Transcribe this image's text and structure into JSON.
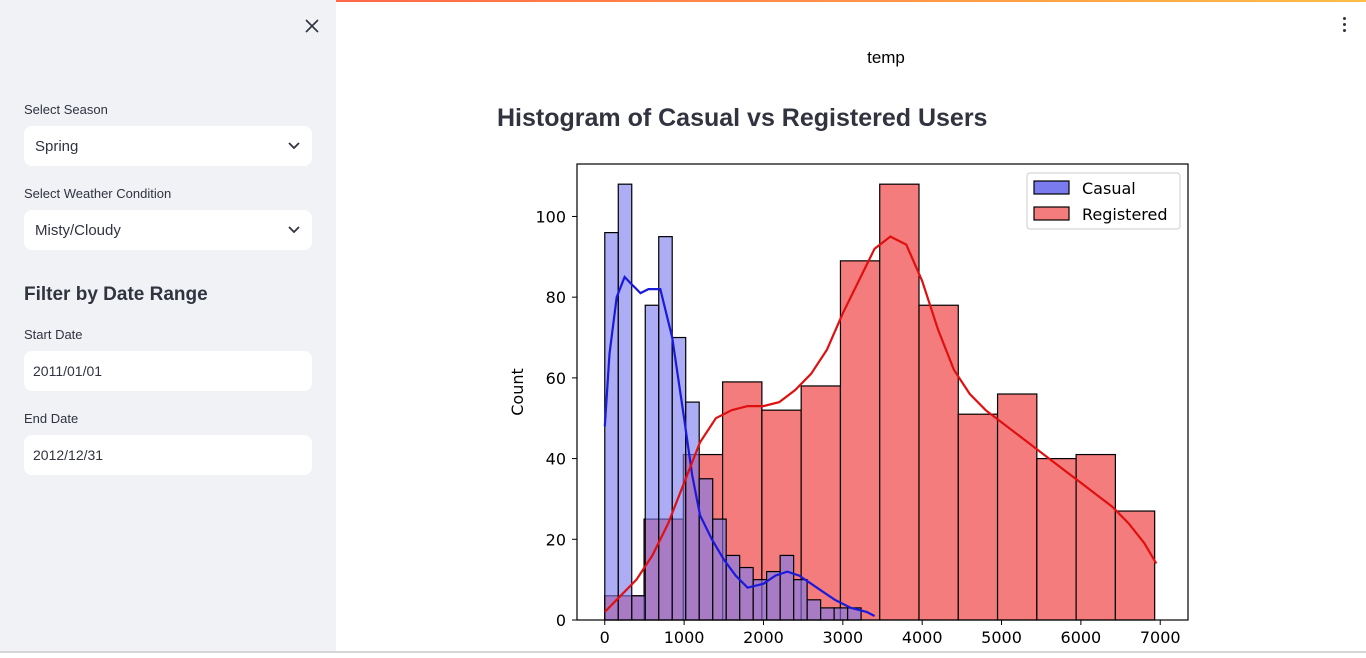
{
  "sidebar": {
    "season_label": "Select Season",
    "season_value": "Spring",
    "weather_label": "Select Weather Condition",
    "weather_value": "Misty/Cloudy",
    "date_heading": "Filter by Date Range",
    "start_label": "Start Date",
    "start_value": "2011/01/01",
    "end_label": "End Date",
    "end_value": "2012/12/31"
  },
  "main": {
    "caption": "temp",
    "title": "Histogram of Casual vs Registered Users"
  },
  "colors": {
    "sidebar_bg": "#f0f2f6",
    "casual": "#7b7bf0",
    "registered": "#f47c7c",
    "overlap": "#b2396e",
    "casual_kde": "#1a1adc",
    "registered_kde": "#e01010"
  },
  "chart_data": {
    "type": "bar",
    "title": "",
    "xlabel": "",
    "ylabel": "Count",
    "xlim": [
      -350,
      7350
    ],
    "ylim": [
      0,
      113
    ],
    "xticks": [
      0,
      1000,
      2000,
      3000,
      4000,
      5000,
      6000,
      7000
    ],
    "yticks": [
      0,
      20,
      40,
      60,
      80,
      100
    ],
    "legend_position": "top-right",
    "series": [
      {
        "name": "Casual",
        "bin_start": 0,
        "bin_width": 170,
        "counts": [
          96,
          108,
          6,
          78,
          95,
          70,
          54,
          35,
          25,
          16,
          13,
          10,
          12,
          16,
          10,
          5,
          3,
          3,
          3
        ],
        "kde": [
          [
            0,
            48
          ],
          [
            60,
            66
          ],
          [
            150,
            80
          ],
          [
            250,
            85
          ],
          [
            350,
            83
          ],
          [
            450,
            81
          ],
          [
            550,
            82
          ],
          [
            700,
            82
          ],
          [
            850,
            70
          ],
          [
            1000,
            50
          ],
          [
            1100,
            36
          ],
          [
            1200,
            26
          ],
          [
            1350,
            20
          ],
          [
            1500,
            15
          ],
          [
            1650,
            11
          ],
          [
            1800,
            8
          ],
          [
            2000,
            9
          ],
          [
            2150,
            11
          ],
          [
            2300,
            12
          ],
          [
            2450,
            11
          ],
          [
            2600,
            9
          ],
          [
            2750,
            7
          ],
          [
            2900,
            5
          ],
          [
            3100,
            3
          ],
          [
            3300,
            2
          ],
          [
            3400,
            1
          ]
        ]
      },
      {
        "name": "Registered",
        "bin_start": 0,
        "bin_width": 495,
        "counts": [
          6,
          25,
          41,
          59,
          52,
          58,
          89,
          108,
          78,
          51,
          56,
          40,
          41,
          27
        ],
        "kde": [
          [
            0,
            2
          ],
          [
            200,
            6
          ],
          [
            400,
            10
          ],
          [
            600,
            16
          ],
          [
            800,
            24
          ],
          [
            1000,
            34
          ],
          [
            1200,
            44
          ],
          [
            1400,
            50
          ],
          [
            1600,
            52
          ],
          [
            1800,
            53
          ],
          [
            2000,
            53
          ],
          [
            2200,
            54
          ],
          [
            2400,
            57
          ],
          [
            2600,
            61
          ],
          [
            2800,
            67
          ],
          [
            3000,
            76
          ],
          [
            3200,
            84
          ],
          [
            3400,
            92
          ],
          [
            3600,
            95
          ],
          [
            3800,
            93
          ],
          [
            4000,
            84
          ],
          [
            4200,
            72
          ],
          [
            4400,
            62
          ],
          [
            4600,
            56
          ],
          [
            4800,
            52
          ],
          [
            5000,
            49
          ],
          [
            5200,
            46
          ],
          [
            5400,
            43
          ],
          [
            5600,
            40
          ],
          [
            5800,
            37
          ],
          [
            6000,
            34
          ],
          [
            6200,
            31
          ],
          [
            6400,
            28
          ],
          [
            6600,
            24
          ],
          [
            6800,
            19
          ],
          [
            6950,
            14
          ]
        ]
      }
    ]
  }
}
